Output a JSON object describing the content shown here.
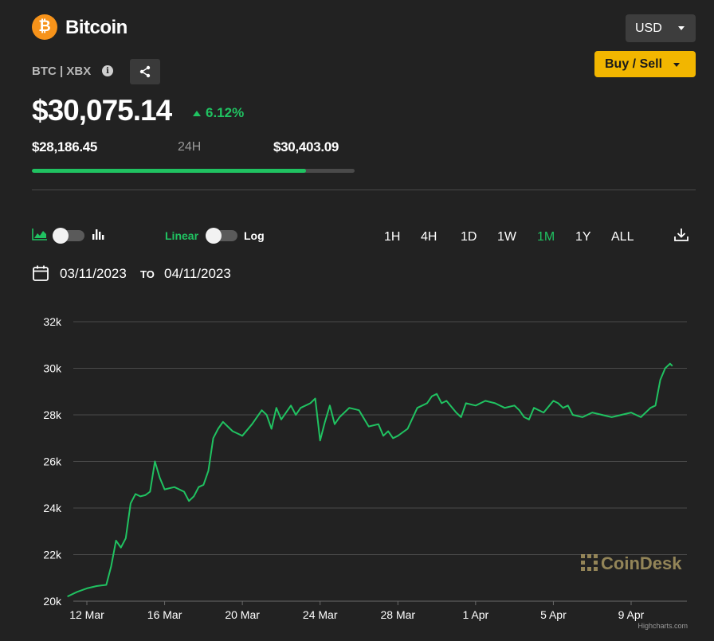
{
  "header": {
    "coin_symbol_glyph": "₿",
    "coin_name": "Bitcoin",
    "ticker": "BTC | XBX",
    "currency": "USD",
    "buy_sell_label": "Buy / Sell"
  },
  "price": {
    "current": "$30,075.14",
    "change_pct": "6.12%",
    "change_direction": "up"
  },
  "range_24h": {
    "low": "$28,186.45",
    "label": "24H",
    "high": "$30,403.09",
    "position_fraction": 0.85
  },
  "controls": {
    "linear_label": "Linear",
    "log_label": "Log",
    "time_ranges": [
      "1H",
      "4H",
      "1D",
      "1W",
      "1M",
      "1Y",
      "ALL"
    ],
    "active_range": "1M",
    "date_from": "03/11/2023",
    "to_label": "TO",
    "date_to": "04/11/2023"
  },
  "colors": {
    "accent_green": "#20c261",
    "brand_yellow": "#f2b600",
    "bitcoin_orange": "#f7931a",
    "background": "#222222"
  },
  "chart_data": {
    "type": "line",
    "title": "",
    "xlabel": "",
    "ylabel": "",
    "y_ticks": [
      "20k",
      "22k",
      "24k",
      "26k",
      "28k",
      "30k",
      "32k"
    ],
    "x_ticks": [
      "12 Mar",
      "16 Mar",
      "20 Mar",
      "24 Mar",
      "28 Mar",
      "1 Apr",
      "5 Apr",
      "9 Apr"
    ],
    "ylim": [
      20000,
      32000
    ],
    "xlim_days": [
      "2023-03-11",
      "2023-04-11"
    ],
    "grid": true,
    "watermark": "CoinDesk",
    "credit": "Highcharts.com",
    "series": [
      {
        "x": [
          "2023-03-11 00:00",
          "2023-03-11 12:00",
          "2023-03-12 00:00",
          "2023-03-12 12:00",
          "2023-03-13 00:00",
          "2023-03-13 06:00",
          "2023-03-13 12:00",
          "2023-03-13 18:00",
          "2023-03-14 00:00",
          "2023-03-14 06:00",
          "2023-03-14 12:00",
          "2023-03-14 18:00",
          "2023-03-15 00:00",
          "2023-03-15 06:00",
          "2023-03-15 12:00",
          "2023-03-15 18:00",
          "2023-03-16 00:00",
          "2023-03-16 12:00",
          "2023-03-17 00:00",
          "2023-03-17 06:00",
          "2023-03-17 12:00",
          "2023-03-17 18:00",
          "2023-03-18 00:00",
          "2023-03-18 06:00",
          "2023-03-18 12:00",
          "2023-03-18 18:00",
          "2023-03-19 00:00",
          "2023-03-19 06:00",
          "2023-03-19 12:00",
          "2023-03-19 18:00",
          "2023-03-20 00:00",
          "2023-03-20 12:00",
          "2023-03-21 00:00",
          "2023-03-21 06:00",
          "2023-03-21 12:00",
          "2023-03-21 18:00",
          "2023-03-22 00:00",
          "2023-03-22 06:00",
          "2023-03-22 12:00",
          "2023-03-22 18:00",
          "2023-03-23 00:00",
          "2023-03-23 06:00",
          "2023-03-23 12:00",
          "2023-03-23 18:00",
          "2023-03-24 00:00",
          "2023-03-24 06:00",
          "2023-03-24 12:00",
          "2023-03-24 18:00",
          "2023-03-25 00:00",
          "2023-03-25 12:00",
          "2023-03-26 00:00",
          "2023-03-26 12:00",
          "2023-03-27 00:00",
          "2023-03-27 06:00",
          "2023-03-27 12:00",
          "2023-03-27 18:00",
          "2023-03-28 00:00",
          "2023-03-28 12:00",
          "2023-03-29 00:00",
          "2023-03-29 06:00",
          "2023-03-29 12:00",
          "2023-03-29 18:00",
          "2023-03-30 00:00",
          "2023-03-30 06:00",
          "2023-03-30 12:00",
          "2023-03-31 00:00",
          "2023-03-31 06:00",
          "2023-03-31 12:00",
          "2023-04-01 00:00",
          "2023-04-01 12:00",
          "2023-04-02 00:00",
          "2023-04-02 12:00",
          "2023-04-03 00:00",
          "2023-04-03 06:00",
          "2023-04-03 12:00",
          "2023-04-03 18:00",
          "2023-04-04 00:00",
          "2023-04-04 12:00",
          "2023-04-05 00:00",
          "2023-04-05 06:00",
          "2023-04-05 12:00",
          "2023-04-05 18:00",
          "2023-04-06 00:00",
          "2023-04-06 12:00",
          "2023-04-07 00:00",
          "2023-04-07 12:00",
          "2023-04-08 00:00",
          "2023-04-08 12:00",
          "2023-04-09 00:00",
          "2023-04-09 12:00",
          "2023-04-10 00:00",
          "2023-04-10 06:00",
          "2023-04-10 12:00",
          "2023-04-10 18:00",
          "2023-04-11 00:00",
          "2023-04-11 03:00"
        ],
        "y": [
          20200,
          20400,
          20550,
          20650,
          20700,
          21500,
          22600,
          22300,
          22700,
          24200,
          24600,
          24500,
          24550,
          24700,
          26000,
          25300,
          24800,
          24900,
          24700,
          24300,
          24500,
          24900,
          25000,
          25600,
          27000,
          27400,
          27700,
          27500,
          27300,
          27200,
          27100,
          27600,
          28200,
          28000,
          27400,
          28300,
          27800,
          28100,
          28400,
          28000,
          28300,
          28400,
          28500,
          28700,
          26900,
          27700,
          28400,
          27600,
          27900,
          28300,
          28200,
          27500,
          27600,
          27100,
          27300,
          27000,
          27100,
          27400,
          28300,
          28400,
          28500,
          28800,
          28900,
          28500,
          28600,
          28100,
          27900,
          28500,
          28400,
          28600,
          28500,
          28300,
          28400,
          28200,
          27900,
          27800,
          28300,
          28100,
          28600,
          28500,
          28300,
          28400,
          28000,
          27900,
          28100,
          28000,
          27900,
          28000,
          28100,
          27900,
          28300,
          28400,
          29500,
          30000,
          30200,
          30100
        ]
      }
    ]
  }
}
